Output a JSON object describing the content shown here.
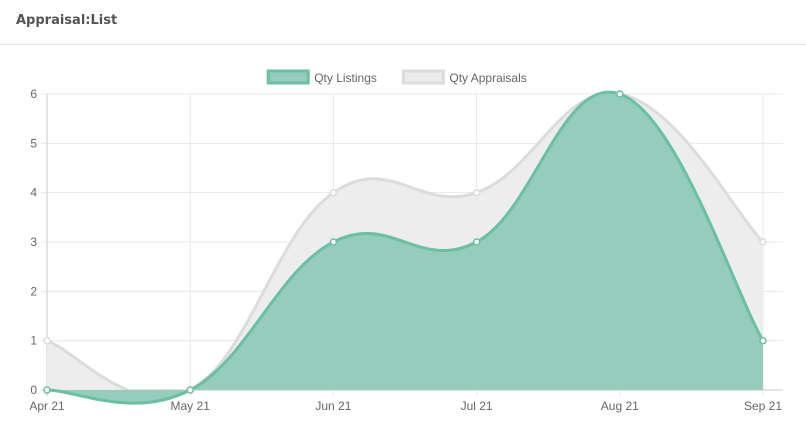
{
  "header": {
    "title": "Appraisal:List"
  },
  "chart_data": {
    "type": "area",
    "title": "",
    "xlabel": "",
    "ylabel": "",
    "categories": [
      "Apr 21",
      "May 21",
      "Jun 21",
      "Jul 21",
      "Aug 21",
      "Sep 21"
    ],
    "series": [
      {
        "name": "Qty Listings",
        "values": [
          0,
          0,
          3,
          3,
          6,
          1
        ],
        "color": "#6bbfa3",
        "fill": "#95ccbc"
      },
      {
        "name": "Qty Appraisals",
        "values": [
          1,
          0,
          4,
          4,
          6,
          3
        ],
        "color": "#dcdcdc",
        "fill": "#ececec"
      }
    ],
    "ylim": [
      0,
      6
    ],
    "yticks": [
      0,
      1,
      2,
      3,
      4,
      5,
      6
    ],
    "grid": true,
    "legend_position": "top"
  }
}
